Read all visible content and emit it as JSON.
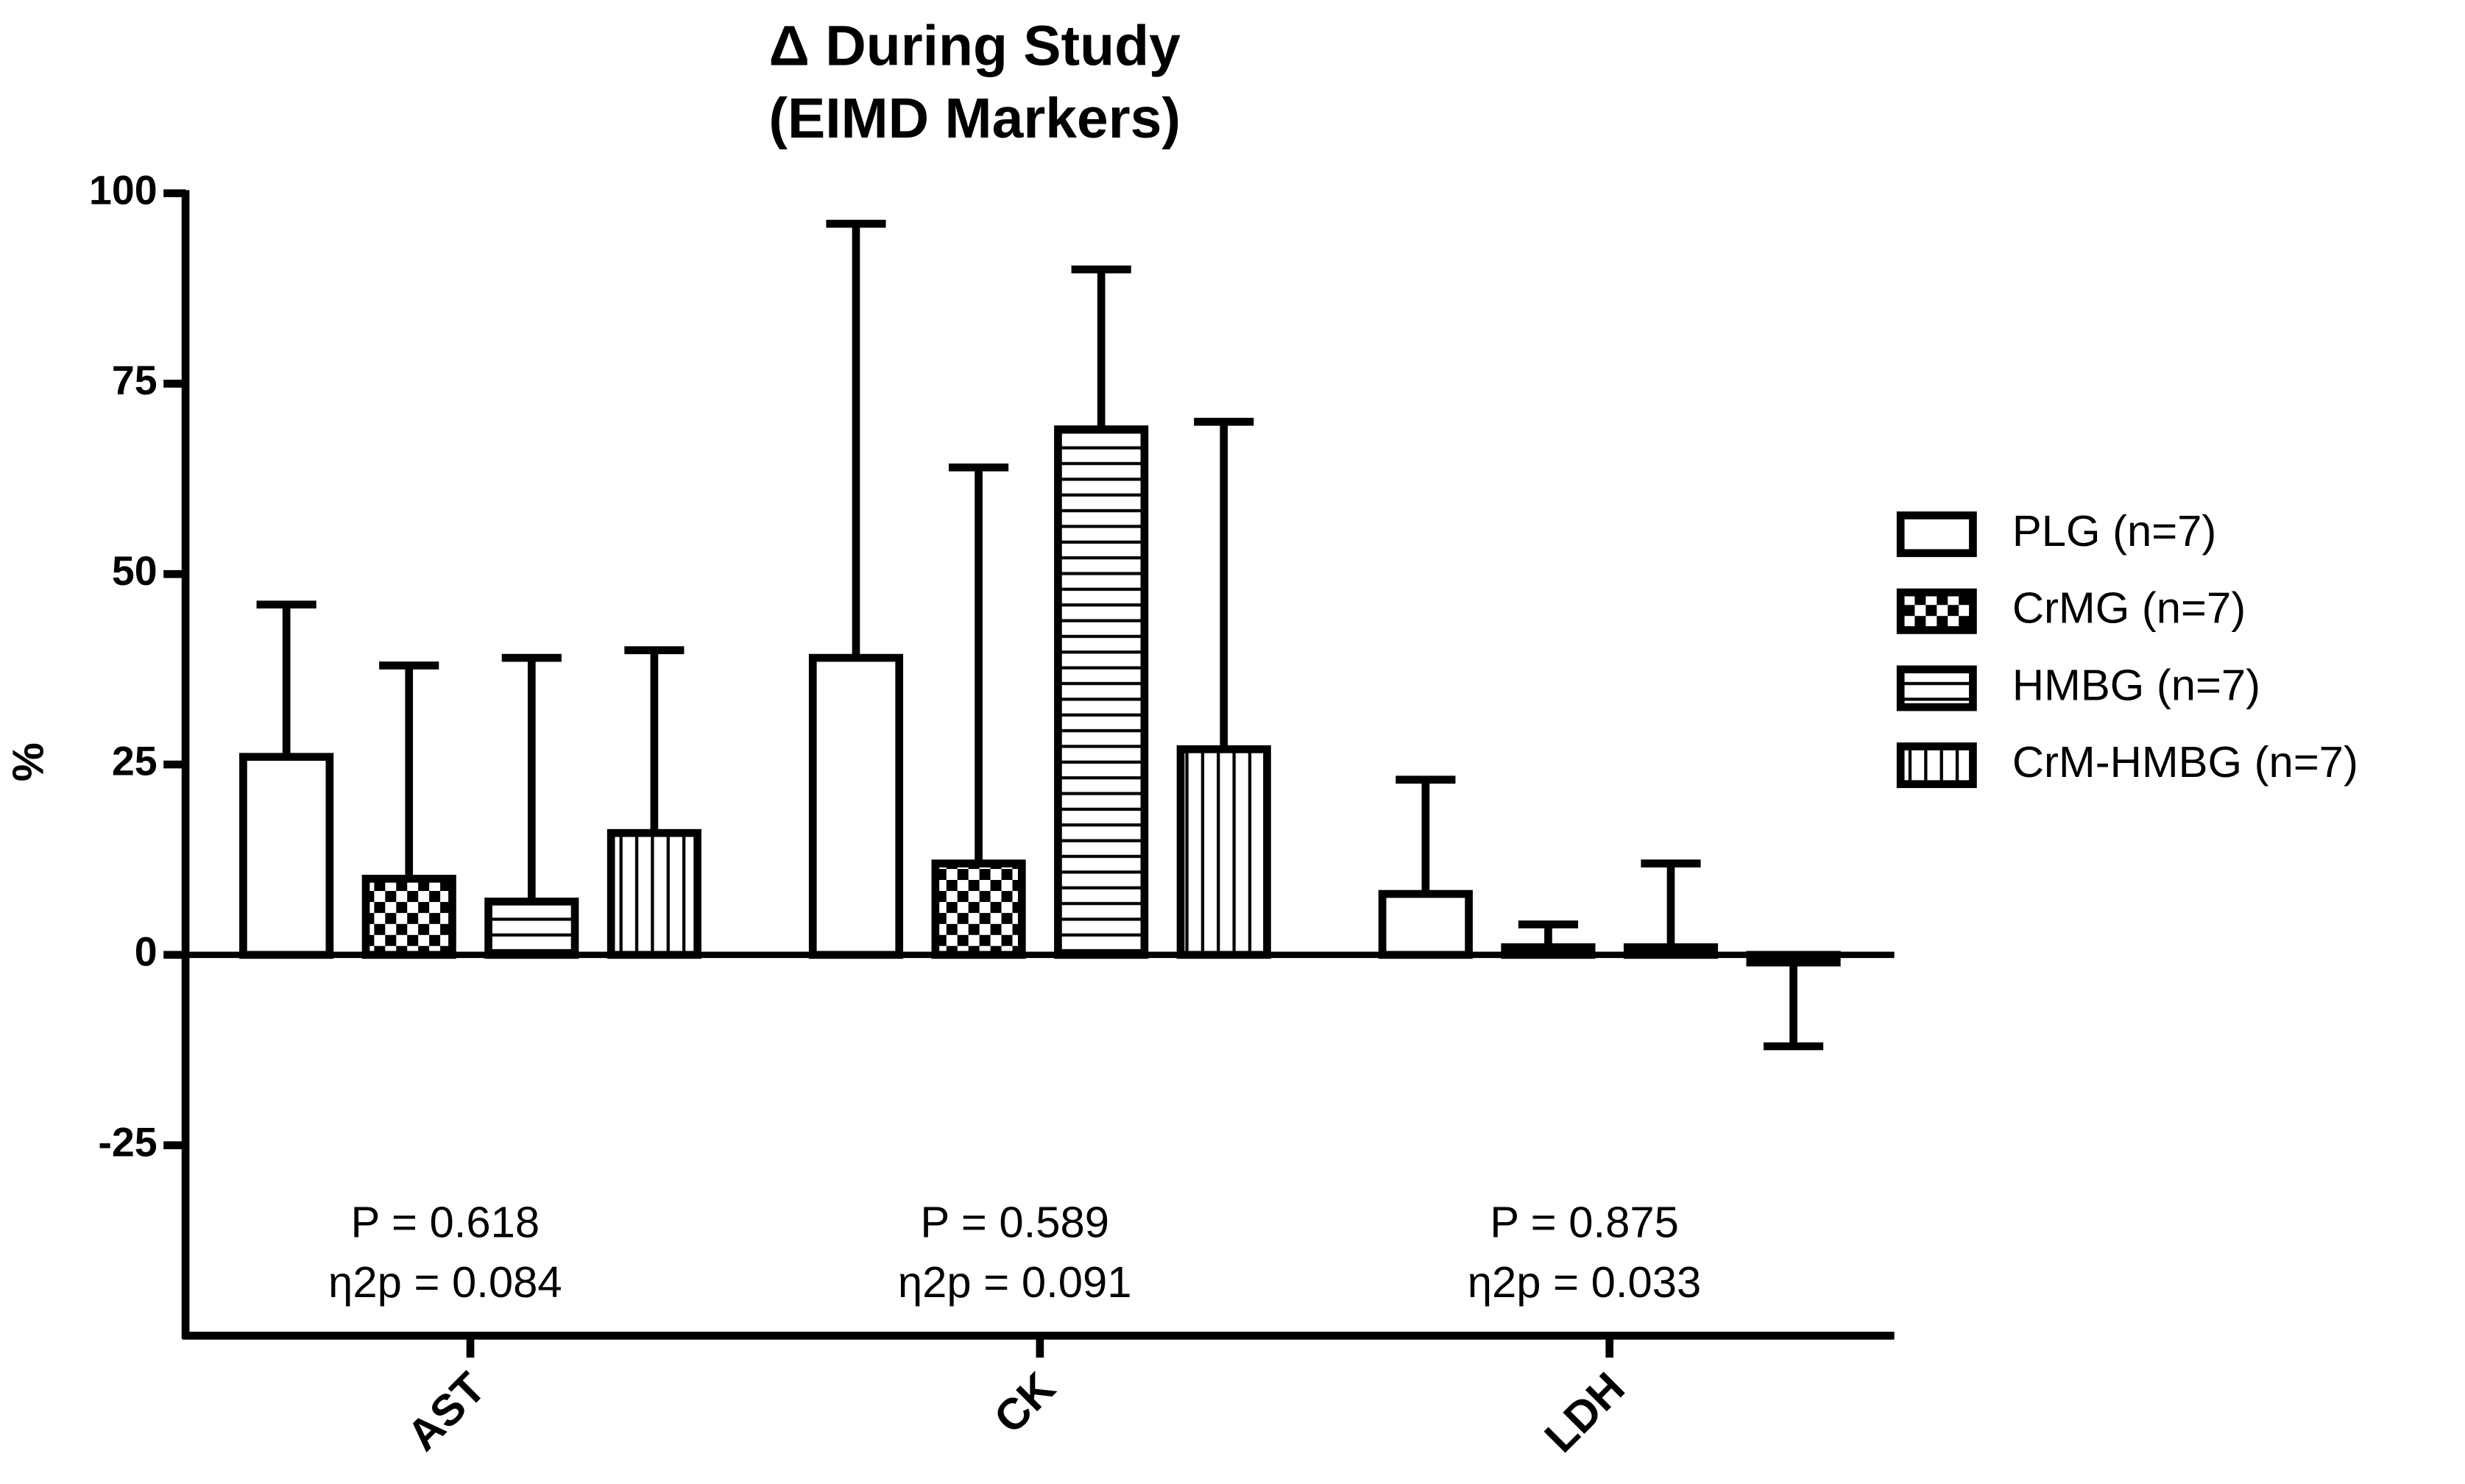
{
  "chart_data": {
    "type": "bar",
    "title": [
      "Δ During Study",
      "(EIMD Markers)"
    ],
    "y_label": "%",
    "categories": [
      "AST",
      "CK",
      "LDH"
    ],
    "series": [
      {
        "name": "PLG (n=7)",
        "color": "#000000",
        "pattern": "none",
        "values": [
          26,
          39,
          8
        ],
        "errors": [
          20,
          57,
          15
        ]
      },
      {
        "name": "CrMG (n=7)",
        "color": "#000000",
        "pattern": "checker",
        "values": [
          10,
          12,
          1
        ],
        "errors": [
          28,
          52,
          3
        ]
      },
      {
        "name": "HMBG (n=7)",
        "color": "#000000",
        "pattern": "horizontal",
        "values": [
          7,
          69,
          1
        ],
        "errors": [
          32,
          21,
          11
        ]
      },
      {
        "name": "CrM-HMBG (n=7)",
        "color": "#000000",
        "pattern": "vertical",
        "values": [
          16,
          27,
          -1
        ],
        "errors": [
          24,
          43,
          11
        ]
      }
    ],
    "annotations": [
      [
        "P = 0.618",
        "η2p = 0.084"
      ],
      [
        "P = 0.589",
        "η2p = 0.091"
      ],
      [
        "P = 0.875",
        "η2p = 0.033"
      ]
    ],
    "ylim": [
      -50,
      100
    ],
    "yticks": [
      -25,
      0,
      25,
      50,
      75,
      100
    ],
    "legend": "right",
    "grid": false
  }
}
